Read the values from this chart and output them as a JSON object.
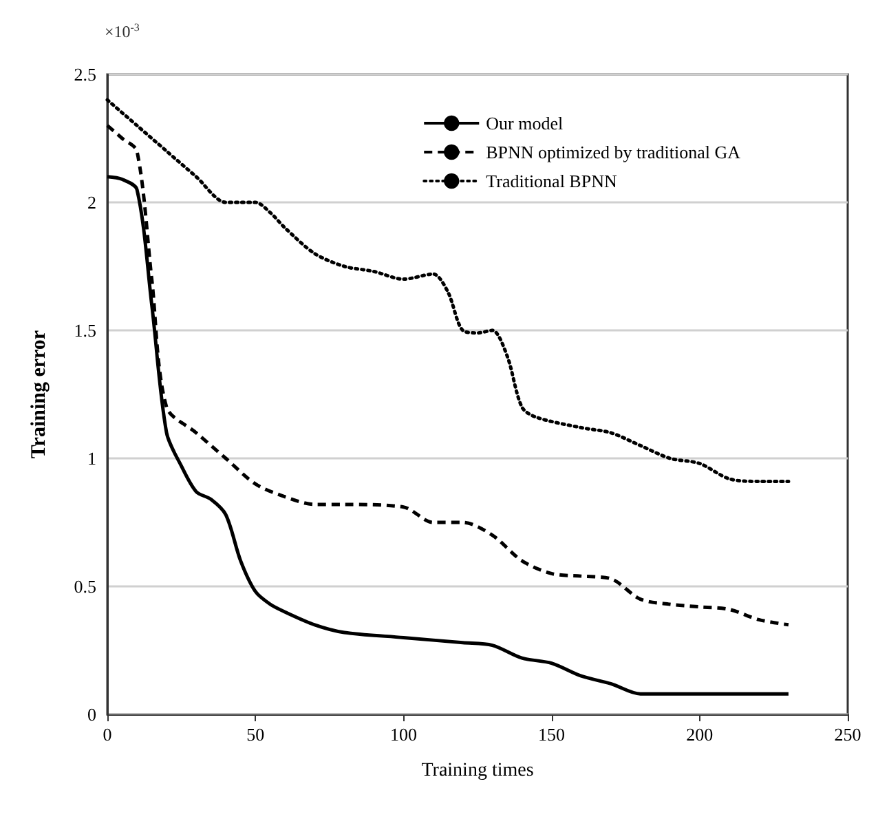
{
  "chart_data": {
    "type": "line",
    "xlabel": "Training times",
    "ylabel": "Training error",
    "annotations": [
      "×10$^{-3}$"
    ],
    "xlim": [
      0,
      250
    ],
    "xticks": [
      0,
      50,
      100,
      150,
      200,
      250
    ],
    "ylim": [
      0,
      2.5
    ],
    "yticks": [
      0,
      0.5,
      1,
      1.5,
      2,
      2.5
    ],
    "grid": "y",
    "legend": "top right",
    "marker": "none",
    "series": [
      {
        "name": "Our model",
        "color": "#000000",
        "line_style": "solid",
        "x": [
          0,
          5,
          10,
          15,
          20,
          25,
          30,
          35,
          40,
          45,
          50,
          55,
          60,
          70,
          80,
          100,
          120,
          130,
          140,
          150,
          160,
          170,
          180,
          190,
          230
        ],
        "values": [
          2.1,
          2.09,
          2.05,
          1.6,
          1.1,
          0.97,
          0.87,
          0.84,
          0.78,
          0.6,
          0.48,
          0.43,
          0.4,
          0.35,
          0.32,
          0.3,
          0.28,
          0.27,
          0.22,
          0.2,
          0.15,
          0.12,
          0.08,
          0.08,
          0.08
        ]
      },
      {
        "name": "BPNN optimized by traditional GA",
        "color": "#000000",
        "line_style": "dashed",
        "x": [
          0,
          5,
          10,
          15,
          20,
          30,
          40,
          50,
          60,
          70,
          80,
          100,
          110,
          120,
          130,
          140,
          150,
          160,
          170,
          180,
          190,
          200,
          210,
          220,
          230
        ],
        "values": [
          2.3,
          2.25,
          2.2,
          1.7,
          1.2,
          1.1,
          1.0,
          0.9,
          0.85,
          0.82,
          0.82,
          0.81,
          0.75,
          0.75,
          0.7,
          0.6,
          0.55,
          0.54,
          0.53,
          0.45,
          0.43,
          0.42,
          0.41,
          0.37,
          0.35
        ]
      },
      {
        "name": "Traditional BPNN",
        "color": "#000000",
        "line_style": "dotted",
        "x": [
          0,
          10,
          20,
          30,
          40,
          45,
          50,
          55,
          60,
          70,
          80,
          90,
          100,
          110,
          115,
          120,
          125,
          130,
          135,
          140,
          145,
          160,
          170,
          180,
          190,
          200,
          210,
          220,
          230
        ],
        "values": [
          2.4,
          2.3,
          2.2,
          2.1,
          2.0,
          2.0,
          2.0,
          1.96,
          1.9,
          1.8,
          1.75,
          1.73,
          1.7,
          1.72,
          1.65,
          1.5,
          1.49,
          1.5,
          1.4,
          1.2,
          1.16,
          1.12,
          1.1,
          1.05,
          1.0,
          0.98,
          0.92,
          0.91,
          0.91
        ]
      }
    ]
  }
}
